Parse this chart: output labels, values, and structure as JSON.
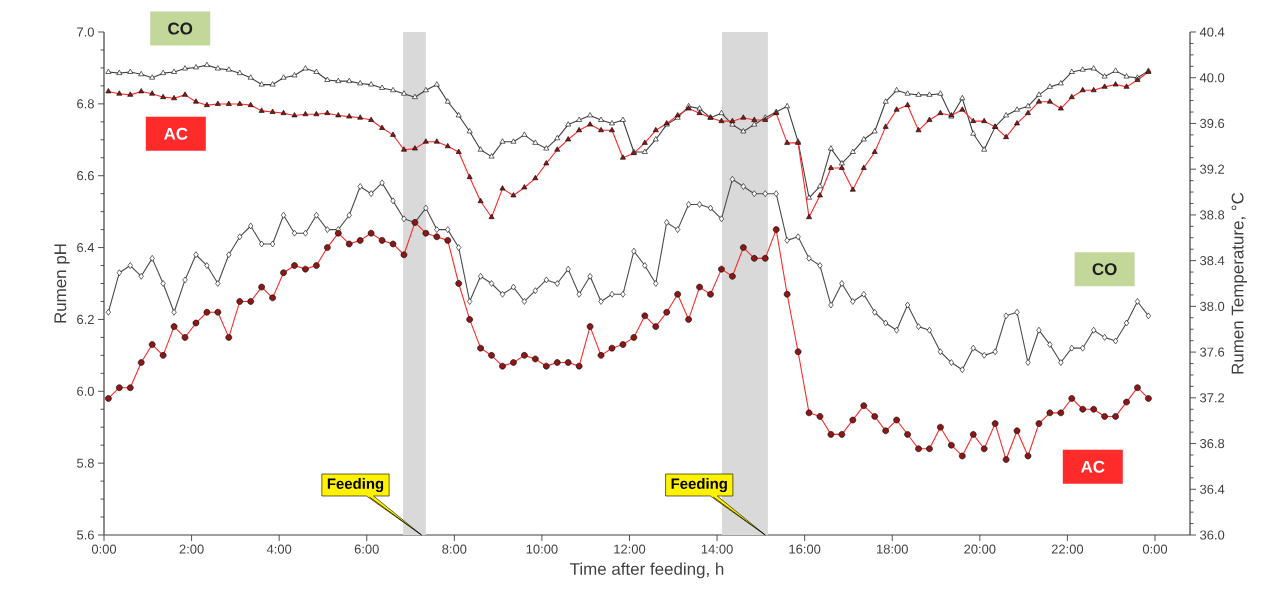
{
  "chart_data": {
    "type": "line",
    "xlabel": "Time after feeding, h",
    "ylabel": "Rumen pH",
    "y2label": "Rumen Temperature, °C",
    "xlim": [
      0,
      24.8
    ],
    "xticks": [
      {
        "value": 0,
        "label": "0:00"
      },
      {
        "value": 2,
        "label": "2:00"
      },
      {
        "value": 4,
        "label": "4:00"
      },
      {
        "value": 6,
        "label": "6:00"
      },
      {
        "value": 8,
        "label": "8:00"
      },
      {
        "value": 10,
        "label": "10:00"
      },
      {
        "value": 12,
        "label": "12:00"
      },
      {
        "value": 14,
        "label": "14:00"
      },
      {
        "value": 16,
        "label": "16:00"
      },
      {
        "value": 18,
        "label": "18:00"
      },
      {
        "value": 20,
        "label": "20:00"
      },
      {
        "value": 22,
        "label": "22:00"
      },
      {
        "value": 24,
        "label": "0:00"
      }
    ],
    "ylim": [
      5.6,
      7.0
    ],
    "yticks": [
      {
        "value": 5.6,
        "label": "5.6"
      },
      {
        "value": 5.8,
        "label": "5.8"
      },
      {
        "value": 6.0,
        "label": "6.0"
      },
      {
        "value": 6.2,
        "label": "6.2"
      },
      {
        "value": 6.4,
        "label": "6.4"
      },
      {
        "value": 6.6,
        "label": "6.6"
      },
      {
        "value": 6.8,
        "label": "6.8"
      },
      {
        "value": 7.0,
        "label": "7.0"
      }
    ],
    "y2lim": [
      36.0,
      40.4
    ],
    "y2ticks": [
      {
        "value": 36.0,
        "label": "36.0"
      },
      {
        "value": 36.4,
        "label": "36.4"
      },
      {
        "value": 36.8,
        "label": "36.8"
      },
      {
        "value": 37.2,
        "label": "37.2"
      },
      {
        "value": 37.6,
        "label": "37.6"
      },
      {
        "value": 38.0,
        "label": "38.0"
      },
      {
        "value": 38.4,
        "label": "38.4"
      },
      {
        "value": 38.8,
        "label": "38.8"
      },
      {
        "value": 39.2,
        "label": "39.2"
      },
      {
        "value": 39.6,
        "label": "39.6"
      },
      {
        "value": 40.0,
        "label": "40.0"
      },
      {
        "value": 40.4,
        "label": "40.4"
      }
    ],
    "x": [
      0.1,
      0.35,
      0.6,
      0.85,
      1.1,
      1.35,
      1.6,
      1.85,
      2.1,
      2.35,
      2.6,
      2.85,
      3.1,
      3.35,
      3.6,
      3.85,
      4.1,
      4.35,
      4.6,
      4.85,
      5.1,
      5.35,
      5.6,
      5.85,
      6.1,
      6.35,
      6.6,
      6.85,
      7.1,
      7.35,
      7.6,
      7.85,
      8.1,
      8.35,
      8.6,
      8.85,
      9.1,
      9.35,
      9.6,
      9.85,
      10.1,
      10.35,
      10.6,
      10.85,
      11.1,
      11.35,
      11.6,
      11.85,
      12.1,
      12.35,
      12.6,
      12.85,
      13.1,
      13.35,
      13.6,
      13.85,
      14.1,
      14.35,
      14.6,
      14.85,
      15.1,
      15.35,
      15.6,
      15.85,
      16.1,
      16.35,
      16.6,
      16.85,
      17.1,
      17.35,
      17.6,
      17.85,
      18.1,
      18.35,
      18.6,
      18.85,
      19.1,
      19.35,
      19.6,
      19.85,
      20.1,
      20.35,
      20.6,
      20.85,
      21.1,
      21.35,
      21.6,
      21.85,
      22.1,
      22.35,
      22.6,
      22.85,
      23.1,
      23.35,
      23.6,
      23.85
    ],
    "series": [
      {
        "name": "CO",
        "axis": "y2",
        "color": "#404040",
        "marker": "triangle",
        "values": [
          40.05,
          40.04,
          40.05,
          40.03,
          40.0,
          40.04,
          40.05,
          40.08,
          40.09,
          40.11,
          40.08,
          40.07,
          40.04,
          40.0,
          39.94,
          39.94,
          40.0,
          40.02,
          40.08,
          40.05,
          39.98,
          39.97,
          39.97,
          39.95,
          39.94,
          39.91,
          39.89,
          39.86,
          39.83,
          39.89,
          39.94,
          39.79,
          39.67,
          39.53,
          39.37,
          39.31,
          39.44,
          39.44,
          39.5,
          39.43,
          39.38,
          39.47,
          39.59,
          39.63,
          39.67,
          39.63,
          39.6,
          39.63,
          39.35,
          39.35,
          39.46,
          39.59,
          39.65,
          39.75,
          39.73,
          39.65,
          39.69,
          39.59,
          39.53,
          39.59,
          39.65,
          39.7,
          39.75,
          39.44,
          38.95,
          39.05,
          39.38,
          39.25,
          39.35,
          39.46,
          39.53,
          39.79,
          39.89,
          39.86,
          39.85,
          39.85,
          39.86,
          39.66,
          39.82,
          39.51,
          39.37,
          39.57,
          39.67,
          39.72,
          39.75,
          39.85,
          39.92,
          39.95,
          40.05,
          40.07,
          40.08,
          40.01,
          40.06,
          40.01,
          40.0,
          40.06
        ]
      },
      {
        "name": "AC",
        "axis": "y2",
        "color": "#ff2a2a",
        "marker": "triangle",
        "values": [
          39.88,
          39.86,
          39.85,
          39.88,
          39.86,
          39.83,
          39.82,
          39.85,
          39.79,
          39.76,
          39.77,
          39.77,
          39.77,
          39.76,
          39.71,
          39.7,
          39.69,
          39.67,
          39.68,
          39.68,
          39.69,
          39.67,
          39.66,
          39.65,
          39.63,
          39.56,
          39.5,
          39.37,
          39.38,
          39.44,
          39.44,
          39.4,
          39.35,
          39.13,
          38.92,
          38.78,
          39.03,
          38.97,
          39.04,
          39.12,
          39.25,
          39.37,
          39.46,
          39.54,
          39.59,
          39.54,
          39.54,
          39.3,
          39.34,
          39.43,
          39.54,
          39.6,
          39.67,
          39.73,
          39.69,
          39.65,
          39.62,
          39.62,
          39.65,
          39.63,
          39.63,
          39.69,
          39.43,
          39.43,
          38.78,
          38.97,
          39.21,
          39.21,
          39.02,
          39.21,
          39.35,
          39.57,
          39.72,
          39.76,
          39.54,
          39.63,
          39.69,
          39.67,
          39.72,
          39.62,
          39.62,
          39.57,
          39.48,
          39.6,
          39.69,
          39.79,
          39.79,
          39.73,
          39.83,
          39.89,
          39.89,
          39.92,
          39.94,
          39.92,
          39.98,
          40.05
        ]
      },
      {
        "name": "CO",
        "color": "#4d4d4d",
        "marker": "diamond",
        "values": [
          6.22,
          6.33,
          6.35,
          6.32,
          6.37,
          6.3,
          6.22,
          6.31,
          6.38,
          6.35,
          6.3,
          6.38,
          6.43,
          6.46,
          6.41,
          6.41,
          6.49,
          6.44,
          6.44,
          6.49,
          6.45,
          6.45,
          6.49,
          6.57,
          6.55,
          6.58,
          6.53,
          6.48,
          6.47,
          6.51,
          6.45,
          6.45,
          6.4,
          6.25,
          6.32,
          6.3,
          6.27,
          6.29,
          6.25,
          6.28,
          6.31,
          6.3,
          6.34,
          6.27,
          6.32,
          6.25,
          6.27,
          6.27,
          6.39,
          6.35,
          6.3,
          6.47,
          6.45,
          6.52,
          6.52,
          6.51,
          6.48,
          6.59,
          6.57,
          6.55,
          6.55,
          6.55,
          6.42,
          6.43,
          6.37,
          6.35,
          6.24,
          6.3,
          6.25,
          6.27,
          6.22,
          6.19,
          6.17,
          6.24,
          6.18,
          6.17,
          6.11,
          6.08,
          6.06,
          6.12,
          6.1,
          6.11,
          6.21,
          6.22,
          6.08,
          6.17,
          6.13,
          6.08,
          6.12,
          6.12,
          6.17,
          6.15,
          6.14,
          6.19,
          6.25,
          6.21
        ]
      },
      {
        "name": "AC",
        "color": "#ff2a2a",
        "marker": "circle",
        "values": [
          5.98,
          6.01,
          6.01,
          6.08,
          6.13,
          6.1,
          6.18,
          6.15,
          6.19,
          6.22,
          6.22,
          6.15,
          6.25,
          6.25,
          6.29,
          6.26,
          6.33,
          6.35,
          6.34,
          6.35,
          6.4,
          6.44,
          6.41,
          6.42,
          6.44,
          6.42,
          6.41,
          6.38,
          6.47,
          6.44,
          6.43,
          6.42,
          6.3,
          6.2,
          6.12,
          6.1,
          6.07,
          6.08,
          6.1,
          6.09,
          6.07,
          6.08,
          6.08,
          6.07,
          6.18,
          6.1,
          6.12,
          6.13,
          6.15,
          6.21,
          6.18,
          6.22,
          6.27,
          6.2,
          6.29,
          6.27,
          6.34,
          6.32,
          6.4,
          6.37,
          6.37,
          6.45,
          6.27,
          6.11,
          5.94,
          5.93,
          5.88,
          5.88,
          5.92,
          5.96,
          5.93,
          5.89,
          5.92,
          5.88,
          5.84,
          5.84,
          5.9,
          5.85,
          5.82,
          5.88,
          5.84,
          5.91,
          5.81,
          5.89,
          5.82,
          5.91,
          5.94,
          5.94,
          5.98,
          5.95,
          5.95,
          5.93,
          5.93,
          5.97,
          6.01,
          5.98
        ]
      }
    ],
    "bands": [
      {
        "axis": "x",
        "from": 6.83,
        "to": 7.35,
        "color": "#d9d9d9"
      },
      {
        "axis": "x",
        "from": 14.11,
        "to": 15.16,
        "color": "#d9d9d9"
      }
    ],
    "annotations": [
      {
        "text": "Feeding",
        "x": 7.25,
        "y": 5.6
      },
      {
        "text": "Feeding",
        "x": 15.1,
        "y": 5.6
      }
    ]
  }
}
